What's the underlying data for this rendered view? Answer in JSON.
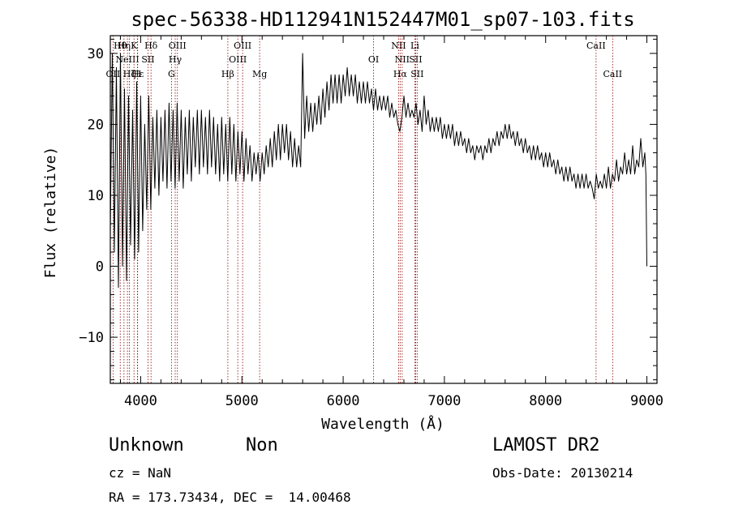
{
  "chart_data": {
    "type": "line",
    "title": "spec-56338-HD112941N152447M01_sp07-103.fits",
    "xlabel": "Wavelength (Å)",
    "ylabel": "Flux (relative)",
    "xlim": [
      3700,
      9100
    ],
    "ylim": [
      -16.5,
      32.5
    ],
    "x_ticks": [
      4000,
      5000,
      6000,
      7000,
      8000,
      9000
    ],
    "y_ticks": [
      -10,
      0,
      10,
      20,
      30
    ],
    "grid": false,
    "line_color": "#000000",
    "marker_color": "#8b0000",
    "series": [
      {
        "envelope_points": [
          [
            3700,
            5
          ],
          [
            3720,
            30
          ],
          [
            3740,
            2
          ],
          [
            3760,
            28
          ],
          [
            3780,
            -3
          ],
          [
            3800,
            30
          ],
          [
            3820,
            0
          ],
          [
            3840,
            25
          ],
          [
            3860,
            -2
          ],
          [
            3880,
            24
          ],
          [
            3900,
            3
          ],
          [
            3920,
            22
          ],
          [
            3940,
            1
          ],
          [
            3960,
            26
          ],
          [
            3980,
            2
          ],
          [
            4000,
            24
          ],
          [
            4020,
            5
          ],
          [
            4040,
            20
          ],
          [
            4060,
            8
          ],
          [
            4080,
            24
          ],
          [
            4100,
            8
          ],
          [
            4120,
            21
          ],
          [
            4140,
            11
          ],
          [
            4160,
            22
          ],
          [
            4180,
            10
          ],
          [
            4200,
            21
          ],
          [
            4220,
            12
          ],
          [
            4240,
            22
          ],
          [
            4260,
            11
          ],
          [
            4280,
            23
          ],
          [
            4300,
            12
          ],
          [
            4320,
            22
          ],
          [
            4340,
            11
          ],
          [
            4360,
            23
          ],
          [
            4380,
            12
          ],
          [
            4400,
            22
          ],
          [
            4420,
            11
          ],
          [
            4440,
            21
          ],
          [
            4460,
            13
          ],
          [
            4480,
            22
          ],
          [
            4500,
            12
          ],
          [
            4520,
            21
          ],
          [
            4540,
            14
          ],
          [
            4560,
            22
          ],
          [
            4580,
            13
          ],
          [
            4600,
            22
          ],
          [
            4620,
            14
          ],
          [
            4640,
            21
          ],
          [
            4660,
            13
          ],
          [
            4680,
            22
          ],
          [
            4700,
            14
          ],
          [
            4720,
            21
          ],
          [
            4740,
            13
          ],
          [
            4760,
            20
          ],
          [
            4780,
            12
          ],
          [
            4800,
            21
          ],
          [
            4820,
            13
          ],
          [
            4840,
            20
          ],
          [
            4860,
            12
          ],
          [
            4880,
            21
          ],
          [
            4900,
            13
          ],
          [
            4920,
            20
          ],
          [
            4940,
            12
          ],
          [
            4960,
            19
          ],
          [
            4980,
            13
          ],
          [
            5000,
            19
          ],
          [
            5020,
            12
          ],
          [
            5040,
            18
          ],
          [
            5060,
            13
          ],
          [
            5080,
            17
          ],
          [
            5100,
            12
          ],
          [
            5120,
            16
          ],
          [
            5140,
            13
          ],
          [
            5160,
            16
          ],
          [
            5180,
            12
          ],
          [
            5200,
            16
          ],
          [
            5220,
            13
          ],
          [
            5240,
            17
          ],
          [
            5260,
            14
          ],
          [
            5280,
            18
          ],
          [
            5300,
            14
          ],
          [
            5320,
            19
          ],
          [
            5340,
            15
          ],
          [
            5360,
            20
          ],
          [
            5380,
            15
          ],
          [
            5400,
            20
          ],
          [
            5420,
            16
          ],
          [
            5440,
            20
          ],
          [
            5460,
            15
          ],
          [
            5480,
            19
          ],
          [
            5500,
            14
          ],
          [
            5520,
            18
          ],
          [
            5540,
            14
          ],
          [
            5560,
            17
          ],
          [
            5580,
            14
          ],
          [
            5600,
            30
          ],
          [
            5620,
            18
          ],
          [
            5640,
            24
          ],
          [
            5660,
            19
          ],
          [
            5680,
            23
          ],
          [
            5700,
            19
          ],
          [
            5720,
            23
          ],
          [
            5740,
            20
          ],
          [
            5760,
            24
          ],
          [
            5780,
            20
          ],
          [
            5800,
            25
          ],
          [
            5820,
            21
          ],
          [
            5840,
            26
          ],
          [
            5860,
            22
          ],
          [
            5880,
            27
          ],
          [
            5900,
            23
          ],
          [
            5920,
            27
          ],
          [
            5940,
            23
          ],
          [
            5960,
            27
          ],
          [
            5980,
            23
          ],
          [
            6000,
            27
          ],
          [
            6020,
            24
          ],
          [
            6040,
            28
          ],
          [
            6060,
            24
          ],
          [
            6080,
            27
          ],
          [
            6100,
            24
          ],
          [
            6120,
            27
          ],
          [
            6140,
            23
          ],
          [
            6160,
            26
          ],
          [
            6180,
            23
          ],
          [
            6200,
            26
          ],
          [
            6220,
            23
          ],
          [
            6240,
            26
          ],
          [
            6260,
            23
          ],
          [
            6280,
            25
          ],
          [
            6300,
            22
          ],
          [
            6320,
            25
          ],
          [
            6340,
            22
          ],
          [
            6360,
            24
          ],
          [
            6380,
            22
          ],
          [
            6400,
            24
          ],
          [
            6420,
            22
          ],
          [
            6440,
            24
          ],
          [
            6460,
            21
          ],
          [
            6480,
            23
          ],
          [
            6500,
            21
          ],
          [
            6520,
            22
          ],
          [
            6540,
            20
          ],
          [
            6560,
            19
          ],
          [
            6580,
            21
          ],
          [
            6600,
            24
          ],
          [
            6620,
            21
          ],
          [
            6640,
            23
          ],
          [
            6660,
            21
          ],
          [
            6680,
            22
          ],
          [
            6700,
            21
          ],
          [
            6720,
            23
          ],
          [
            6740,
            20
          ],
          [
            6760,
            22
          ],
          [
            6780,
            19
          ],
          [
            6800,
            24
          ],
          [
            6820,
            20
          ],
          [
            6840,
            22
          ],
          [
            6860,
            19
          ],
          [
            6880,
            21
          ],
          [
            6900,
            19
          ],
          [
            6920,
            21
          ],
          [
            6940,
            19
          ],
          [
            6960,
            21
          ],
          [
            6980,
            18
          ],
          [
            7000,
            20
          ],
          [
            7020,
            18
          ],
          [
            7040,
            20
          ],
          [
            7060,
            18
          ],
          [
            7080,
            20
          ],
          [
            7100,
            17
          ],
          [
            7120,
            19
          ],
          [
            7140,
            17
          ],
          [
            7160,
            19
          ],
          [
            7180,
            17
          ],
          [
            7200,
            18
          ],
          [
            7220,
            16
          ],
          [
            7240,
            18
          ],
          [
            7260,
            16
          ],
          [
            7280,
            17
          ],
          [
            7300,
            15
          ],
          [
            7320,
            17
          ],
          [
            7340,
            16
          ],
          [
            7360,
            17
          ],
          [
            7380,
            15
          ],
          [
            7400,
            17
          ],
          [
            7420,
            16
          ],
          [
            7440,
            18
          ],
          [
            7460,
            16
          ],
          [
            7480,
            18
          ],
          [
            7500,
            17
          ],
          [
            7520,
            19
          ],
          [
            7540,
            17
          ],
          [
            7560,
            19
          ],
          [
            7580,
            18
          ],
          [
            7600,
            20
          ],
          [
            7620,
            18
          ],
          [
            7640,
            20
          ],
          [
            7660,
            18
          ],
          [
            7680,
            19
          ],
          [
            7700,
            17
          ],
          [
            7720,
            19
          ],
          [
            7740,
            17
          ],
          [
            7760,
            18
          ],
          [
            7780,
            16
          ],
          [
            7800,
            18
          ],
          [
            7820,
            16
          ],
          [
            7840,
            17
          ],
          [
            7860,
            15
          ],
          [
            7880,
            17
          ],
          [
            7900,
            15
          ],
          [
            7920,
            17
          ],
          [
            7940,
            15
          ],
          [
            7960,
            16
          ],
          [
            7980,
            14
          ],
          [
            8000,
            16
          ],
          [
            8020,
            14
          ],
          [
            8040,
            16
          ],
          [
            8060,
            14
          ],
          [
            8080,
            15
          ],
          [
            8100,
            13
          ],
          [
            8120,
            15
          ],
          [
            8140,
            13
          ],
          [
            8160,
            14
          ],
          [
            8180,
            12
          ],
          [
            8200,
            14
          ],
          [
            8220,
            12
          ],
          [
            8240,
            14
          ],
          [
            8260,
            12
          ],
          [
            8280,
            13
          ],
          [
            8300,
            11
          ],
          [
            8320,
            13
          ],
          [
            8340,
            11
          ],
          [
            8360,
            13
          ],
          [
            8380,
            11
          ],
          [
            8400,
            13
          ],
          [
            8420,
            11
          ],
          [
            8440,
            12
          ],
          [
            8460,
            11
          ],
          [
            8480,
            9.5
          ],
          [
            8500,
            13
          ],
          [
            8520,
            11
          ],
          [
            8540,
            12
          ],
          [
            8560,
            11
          ],
          [
            8580,
            13
          ],
          [
            8600,
            11
          ],
          [
            8620,
            14
          ],
          [
            8640,
            11
          ],
          [
            8660,
            13
          ],
          [
            8680,
            12
          ],
          [
            8700,
            15
          ],
          [
            8720,
            12
          ],
          [
            8740,
            14
          ],
          [
            8760,
            13
          ],
          [
            8780,
            16
          ],
          [
            8800,
            13
          ],
          [
            8820,
            15
          ],
          [
            8840,
            13
          ],
          [
            8860,
            17
          ],
          [
            8880,
            13
          ],
          [
            8900,
            15
          ],
          [
            8920,
            14
          ],
          [
            8940,
            18
          ],
          [
            8960,
            14
          ],
          [
            8980,
            16
          ],
          [
            8990,
            13
          ],
          [
            9000,
            0
          ]
        ]
      }
    ],
    "line_markers": [
      {
        "wl": 3727,
        "label": "OII",
        "row": 3
      },
      {
        "wl": 3798,
        "label": "Hθ",
        "row": 1
      },
      {
        "wl": 3835,
        "label": "Hη",
        "row": 1
      },
      {
        "wl": 3869,
        "label": "NeIII",
        "row": 2
      },
      {
        "wl": 3889,
        "label": "Hζ",
        "row": 3
      },
      {
        "wl": 3934,
        "label": "K",
        "row": 1
      },
      {
        "wl": 3970,
        "label": "Hε",
        "row": 3
      },
      {
        "wl": 3968,
        "label": "H",
        "row": 3
      },
      {
        "wl": 4072,
        "label": "SII",
        "row": 2
      },
      {
        "wl": 4102,
        "label": "Hδ",
        "row": 1
      },
      {
        "wl": 4304,
        "label": "G",
        "row": 3
      },
      {
        "wl": 4341,
        "label": "Hγ",
        "row": 2
      },
      {
        "wl": 4363,
        "label": "OIII",
        "row": 1
      },
      {
        "wl": 4861,
        "label": "Hβ",
        "row": 3
      },
      {
        "wl": 4959,
        "label": "OIII",
        "row": 2
      },
      {
        "wl": 5007,
        "label": "OIII",
        "row": 1
      },
      {
        "wl": 5175,
        "label": "Mg",
        "row": 3
      },
      {
        "wl": 6300,
        "label": "OI",
        "row": 2
      },
      {
        "wl": 6548,
        "label": "NII",
        "row": 1
      },
      {
        "wl": 6563,
        "label": "Hα",
        "row": 3
      },
      {
        "wl": 6583,
        "label": "NII",
        "row": 2
      },
      {
        "wl": 6708,
        "label": "Li",
        "row": 1
      },
      {
        "wl": 6716,
        "label": "SII",
        "row": 2
      },
      {
        "wl": 6731,
        "label": "SII",
        "row": 3
      },
      {
        "wl": 8498,
        "label": "CaII",
        "row": 1
      },
      {
        "wl": 8662,
        "label": "CaII",
        "row": 3
      }
    ]
  },
  "footer": {
    "class_text": "Unknown",
    "subclass_text": "Non",
    "survey_text": "LAMOST DR2",
    "cz_text": "cz = NaN",
    "obs_date_text": "Obs-Date: 20130214",
    "coords_text": "RA = 173.73434, DEC =  14.00468"
  }
}
